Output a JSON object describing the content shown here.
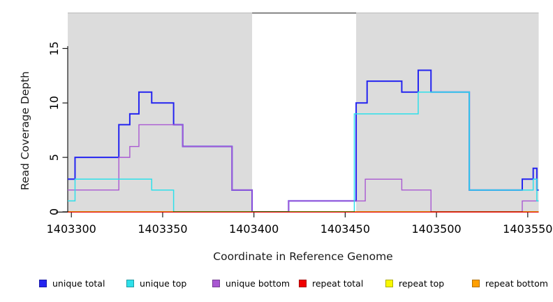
{
  "figure": {
    "xlabel": "Coordinate in Reference Genome",
    "ylabel": "Read Coverage Depth"
  },
  "chart_data": {
    "type": "line",
    "subtype": "step",
    "title": "",
    "xlabel": "Coordinate in Reference Genome",
    "ylabel": "Read Coverage Depth",
    "xlim": [
      1403298,
      1403556
    ],
    "ylim": [
      0,
      18.3
    ],
    "x_ticks": [
      1403300,
      1403350,
      1403400,
      1403450,
      1403500,
      1403550
    ],
    "y_ticks": [
      0,
      5,
      10,
      15
    ],
    "grid": false,
    "legend_position": "bottom",
    "background_color": "#ffffff",
    "shaded_region_color": "#dcdcdc",
    "shaded_regions": [
      {
        "from": 1403298,
        "to": 1403399
      },
      {
        "from": 1403456,
        "to": 1403556
      }
    ],
    "gap_region": {
      "from": 1403399,
      "to": 1403456,
      "top_border_color": "#606060"
    },
    "axis_color": "#1a1a1a",
    "series": [
      {
        "name": "unique total",
        "color": "#2424f0",
        "line_width": 2.0,
        "steps": [
          [
            1403298,
            3
          ],
          [
            1403302,
            5
          ],
          [
            1403326,
            8
          ],
          [
            1403332,
            9
          ],
          [
            1403337,
            11
          ],
          [
            1403344,
            10
          ],
          [
            1403356,
            8
          ],
          [
            1403361,
            6
          ],
          [
            1403388,
            2
          ],
          [
            1403399,
            0
          ],
          [
            1403419,
            1
          ],
          [
            1403456,
            10
          ],
          [
            1403462,
            12
          ],
          [
            1403481,
            11
          ],
          [
            1403490,
            13
          ],
          [
            1403497,
            11
          ],
          [
            1403518,
            2
          ],
          [
            1403547,
            3
          ],
          [
            1403553,
            4
          ],
          [
            1403555,
            2
          ],
          [
            1403556,
            2
          ]
        ]
      },
      {
        "name": "unique top",
        "color": "#2ee0ea",
        "line_width": 1.5,
        "steps": [
          [
            1403298,
            1
          ],
          [
            1403302,
            3
          ],
          [
            1403344,
            2
          ],
          [
            1403356,
            0
          ],
          [
            1403455,
            9
          ],
          [
            1403490,
            11
          ],
          [
            1403518,
            2
          ],
          [
            1403553,
            3
          ],
          [
            1403555,
            1
          ],
          [
            1403556,
            1
          ]
        ]
      },
      {
        "name": "unique bottom",
        "color": "#a958d2",
        "line_width": 1.4,
        "steps": [
          [
            1403298,
            2
          ],
          [
            1403326,
            5
          ],
          [
            1403332,
            6
          ],
          [
            1403337,
            8
          ],
          [
            1403361,
            6
          ],
          [
            1403388,
            2
          ],
          [
            1403399,
            0
          ],
          [
            1403419,
            1
          ],
          [
            1403461,
            3
          ],
          [
            1403481,
            2
          ],
          [
            1403497,
            0
          ],
          [
            1403547,
            1
          ],
          [
            1403556,
            1
          ]
        ]
      },
      {
        "name": "repeat total",
        "color": "#f00000",
        "line_width": 1.1,
        "steps": [
          [
            1403298,
            0
          ],
          [
            1403556,
            0
          ]
        ]
      },
      {
        "name": "repeat top",
        "color": "#f8f800",
        "line_width": 1.1,
        "steps": [
          [
            1403298,
            0
          ],
          [
            1403556,
            0
          ]
        ]
      },
      {
        "name": "repeat bottom",
        "color": "#ff9f00",
        "line_width": 1.8,
        "steps": [
          [
            1403298,
            0
          ],
          [
            1403556,
            0
          ]
        ]
      }
    ]
  }
}
